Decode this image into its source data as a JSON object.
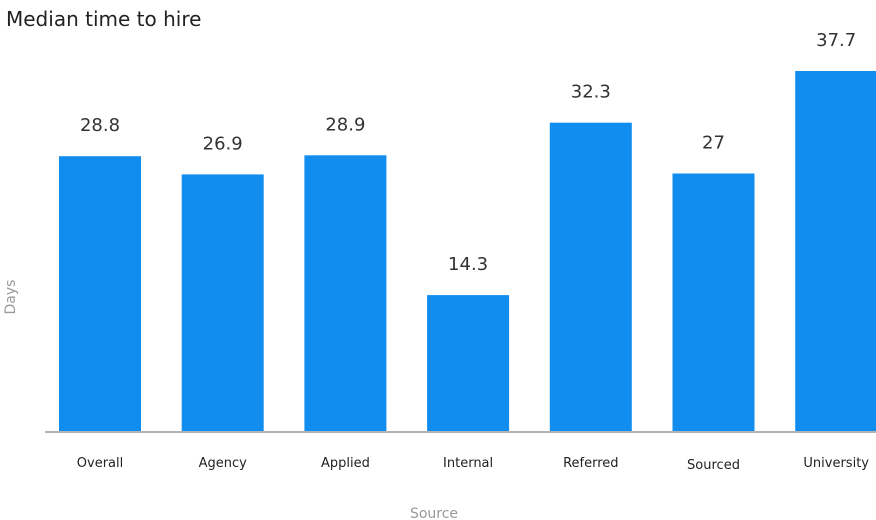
{
  "chart_data": {
    "type": "bar",
    "title": "Median time to hire",
    "xlabel": "Source",
    "ylabel": "Days",
    "categories": [
      "Overall",
      "Agency",
      "Applied",
      "Internal",
      "Referred",
      "Sourced",
      "University"
    ],
    "values": [
      28.8,
      26.9,
      28.9,
      14.3,
      32.3,
      27,
      37.7
    ],
    "value_labels": [
      "28.8",
      "26.9",
      "28.9",
      "14.3",
      "32.3",
      "27",
      "37.7"
    ],
    "ylim": [
      0,
      37.7
    ],
    "grid": false,
    "legend": "none",
    "colors": {
      "bar": "#118df0",
      "baseline": "#b3b3b3"
    }
  }
}
